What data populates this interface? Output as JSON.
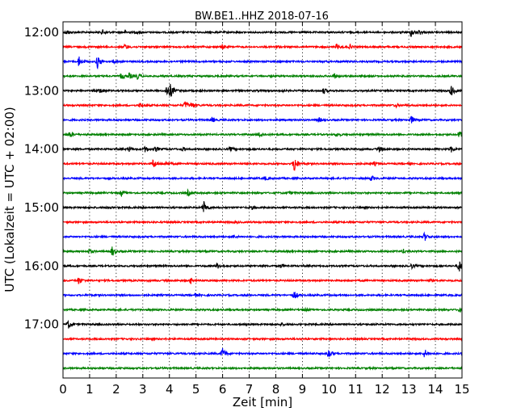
{
  "chart_data": {
    "type": "line",
    "title": "BW.BE1..HHZ 2018-07-16",
    "xlabel": "Zeit  [min]",
    "ylabel": "UTC (Lokalzeit = UTC + 02:00)",
    "xlim": [
      0,
      15
    ],
    "x_ticks": [
      "0",
      "1",
      "2",
      "3",
      "4",
      "5",
      "6",
      "7",
      "8",
      "9",
      "10",
      "11",
      "12",
      "13",
      "14",
      "15"
    ],
    "y_ticks": [
      "12:00",
      "13:00",
      "14:00",
      "15:00",
      "16:00",
      "17:00"
    ],
    "grid": "vertical dotted",
    "series_colors": [
      "#000000",
      "#ff0000",
      "#0000ff",
      "#008000"
    ],
    "traces": [
      {
        "start": "12:00",
        "events": [
          [
            0.15,
            0.25
          ],
          [
            1.5,
            0.25
          ],
          [
            2.35,
            0.15
          ],
          [
            2.8,
            0.15
          ],
          [
            13.1,
            0.5
          ],
          [
            13.4,
            0.25
          ]
        ]
      },
      {
        "start": "12:15",
        "events": [
          [
            2.35,
            0.3
          ],
          [
            6.0,
            0.25
          ],
          [
            8.0,
            0.15
          ],
          [
            10.3,
            0.3
          ],
          [
            10.8,
            0.2
          ]
        ]
      },
      {
        "start": "12:30",
        "events": [
          [
            0.6,
            0.55
          ],
          [
            1.3,
            0.7
          ],
          [
            1.9,
            0.15
          ]
        ]
      },
      {
        "start": "12:45",
        "events": [
          [
            2.2,
            0.35
          ],
          [
            2.5,
            0.3
          ],
          [
            2.8,
            0.3
          ],
          [
            10.2,
            0.25
          ]
        ]
      },
      {
        "start": "13:00",
        "events": [
          [
            1.4,
            0.3
          ],
          [
            3.9,
            0.5
          ],
          [
            4.05,
            0.7
          ],
          [
            8.2,
            0.15
          ],
          [
            9.8,
            0.3
          ],
          [
            14.6,
            0.6
          ]
        ]
      },
      {
        "start": "13:15",
        "events": [
          [
            2.9,
            0.25
          ],
          [
            4.6,
            0.45
          ],
          [
            4.85,
            0.3
          ],
          [
            12.5,
            0.2
          ]
        ]
      },
      {
        "start": "13:30",
        "events": [
          [
            5.6,
            0.25
          ],
          [
            9.6,
            0.25
          ],
          [
            13.1,
            0.4
          ]
        ]
      },
      {
        "start": "13:45",
        "events": [
          [
            0.25,
            0.35
          ],
          [
            7.4,
            0.3
          ],
          [
            10.3,
            0.2
          ],
          [
            14.9,
            0.4
          ]
        ]
      },
      {
        "start": "14:00",
        "events": [
          [
            2.5,
            0.25
          ],
          [
            3.1,
            0.3
          ],
          [
            3.5,
            0.25
          ],
          [
            4.5,
            0.2
          ],
          [
            6.3,
            0.2
          ],
          [
            11.9,
            0.3
          ],
          [
            14.6,
            0.3
          ]
        ]
      },
      {
        "start": "14:15",
        "events": [
          [
            3.4,
            0.5
          ],
          [
            3.9,
            0.25
          ],
          [
            8.7,
            1.0
          ],
          [
            11.7,
            0.2
          ]
        ]
      },
      {
        "start": "14:30",
        "events": [
          [
            7.6,
            0.2
          ],
          [
            11.6,
            0.3
          ]
        ]
      },
      {
        "start": "14:45",
        "events": [
          [
            2.2,
            0.3
          ],
          [
            4.7,
            0.3
          ],
          [
            8.5,
            0.15
          ]
        ]
      },
      {
        "start": "15:00",
        "events": [
          [
            1.7,
            0.2
          ],
          [
            5.3,
            0.7
          ],
          [
            7.1,
            0.15
          ]
        ]
      },
      {
        "start": "15:15",
        "events": [
          [
            6.5,
            0.1
          ]
        ]
      },
      {
        "start": "15:30",
        "events": [
          [
            13.6,
            0.45
          ],
          [
            6.4,
            0.15
          ]
        ]
      },
      {
        "start": "15:45",
        "events": [
          [
            1.0,
            0.3
          ],
          [
            1.85,
            0.55
          ],
          [
            12.8,
            0.2
          ]
        ]
      },
      {
        "start": "16:00",
        "events": [
          [
            5.8,
            0.3
          ],
          [
            8.2,
            0.2
          ],
          [
            13.1,
            0.25
          ],
          [
            14.9,
            0.6
          ]
        ]
      },
      {
        "start": "16:15",
        "events": [
          [
            0.6,
            0.4
          ],
          [
            4.8,
            0.3
          ],
          [
            13.8,
            0.15
          ]
        ]
      },
      {
        "start": "16:30",
        "events": [
          [
            8.7,
            0.4
          ],
          [
            5.0,
            0.15
          ]
        ]
      },
      {
        "start": "16:45",
        "events": [
          [
            9.1,
            0.15
          ],
          [
            14.9,
            0.25
          ]
        ]
      },
      {
        "start": "17:00",
        "events": [
          [
            0.2,
            0.45
          ],
          [
            8.2,
            0.15
          ]
        ]
      },
      {
        "start": "17:15",
        "events": []
      },
      {
        "start": "17:30",
        "events": [
          [
            6.0,
            0.6
          ],
          [
            10.0,
            0.55
          ],
          [
            13.6,
            0.45
          ]
        ]
      },
      {
        "start": "17:45",
        "events": []
      }
    ]
  }
}
